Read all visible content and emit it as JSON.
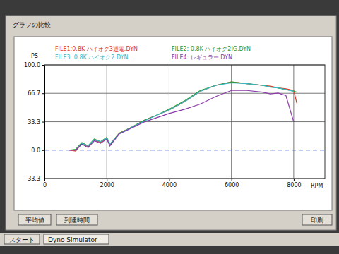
{
  "window": {
    "title": "グラフの比較",
    "buttons": [
      "平均値",
      "到達時間",
      "印刷"
    ]
  },
  "taskbar": {
    "start": "スタート",
    "app": "Dyno Simulator"
  },
  "chart_data": {
    "type": "line",
    "x_label": "RPM",
    "y_label": "PS",
    "x": [
      800,
      1000,
      1200,
      1400,
      1600,
      1800,
      2000,
      2100,
      2400,
      2800,
      3200,
      3600,
      4000,
      4500,
      5000,
      5500,
      6000,
      6500,
      7000,
      7250,
      7500,
      7750,
      8000,
      8100
    ],
    "series": [
      {
        "name": "FILE1:0.8K ハイオク3通電.DYN",
        "color": "#e03a2a",
        "values": [
          0,
          -1,
          8,
          4,
          12,
          9,
          14,
          6,
          20,
          27,
          35,
          41,
          47,
          57,
          69,
          76,
          80,
          78,
          76,
          75,
          73,
          72,
          70,
          55
        ]
      },
      {
        "name": "FILE2:  0.8K ハイオク2IG.DYN",
        "color": "#2a9a3a",
        "values": [
          0,
          1,
          9,
          5,
          13,
          10,
          15,
          7,
          20,
          27,
          35,
          41,
          48,
          58,
          70,
          76,
          80,
          78,
          76,
          74,
          73,
          71,
          69,
          68
        ]
      },
      {
        "name": "FILE3:  0.8K ハイオク2.DYN",
        "color": "#38b8c8",
        "values": [
          null,
          0,
          8,
          5,
          12,
          10,
          14,
          7,
          19,
          27,
          34,
          41,
          47,
          57,
          69,
          76,
          79,
          78,
          76,
          74,
          73,
          71,
          69,
          null
        ]
      },
      {
        "name": "FILE4:  レギュラー.DYN",
        "color": "#8a3aa8",
        "values": [
          0,
          0,
          7,
          3,
          11,
          8,
          13,
          5,
          19,
          26,
          33,
          38,
          43,
          48,
          54,
          63,
          70,
          70,
          68,
          66,
          67,
          64,
          33,
          null
        ]
      }
    ],
    "xlim": [
      0,
      9000
    ],
    "xticks": [
      0,
      2000,
      4000,
      6000,
      8000
    ],
    "ylim": [
      -33.3,
      100
    ],
    "yticks": [
      {
        "value": 100,
        "label": "100.0"
      },
      66.7,
      33.3,
      {
        "value": 0,
        "label": "0.0"
      },
      -33.3
    ],
    "grid": true,
    "legend": "top",
    "line_style": "solid"
  }
}
